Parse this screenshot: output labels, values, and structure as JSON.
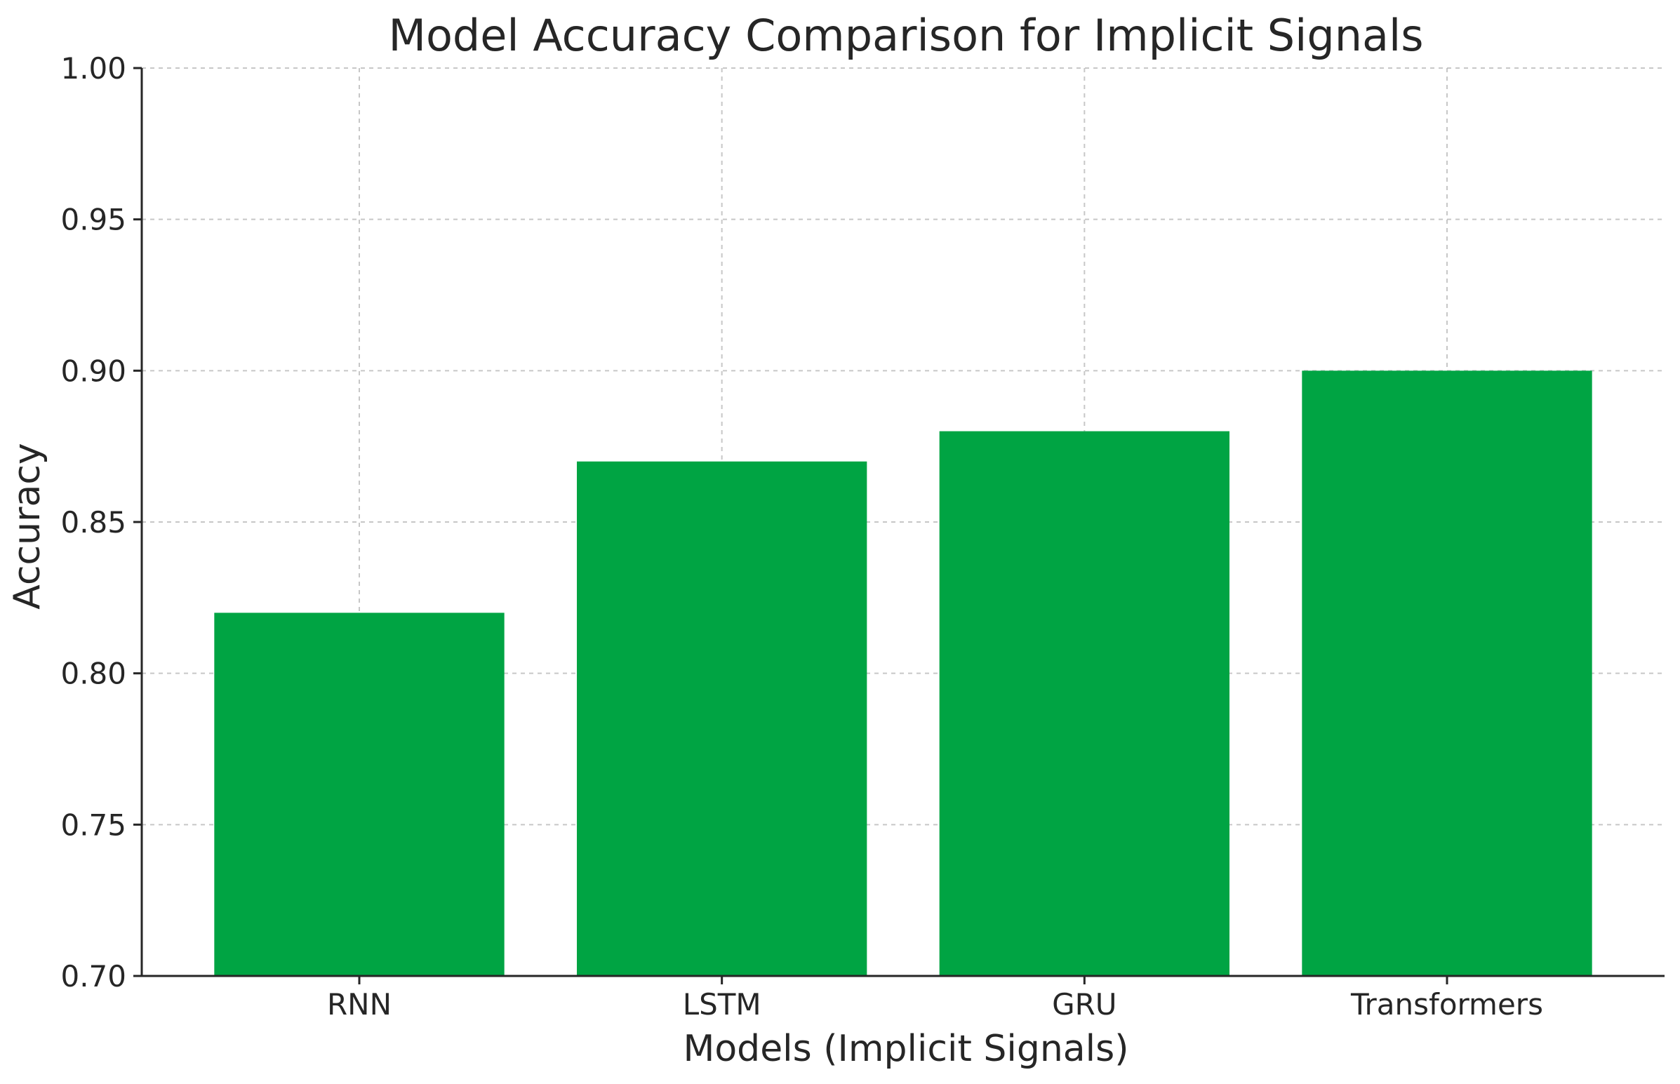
{
  "chart_data": {
    "type": "bar",
    "title": "Model Accuracy Comparison for Implicit Signals",
    "xlabel": "Models (Implicit Signals)",
    "ylabel": "Accuracy",
    "categories": [
      "RNN",
      "LSTM",
      "GRU",
      "Transformers"
    ],
    "values": [
      0.82,
      0.87,
      0.88,
      0.9
    ],
    "ylim": [
      0.7,
      1.0
    ],
    "yticks": [
      "0.70",
      "0.75",
      "0.80",
      "0.85",
      "0.90",
      "0.95",
      "1.00"
    ],
    "grid": true,
    "bar_color": "#00a443"
  }
}
